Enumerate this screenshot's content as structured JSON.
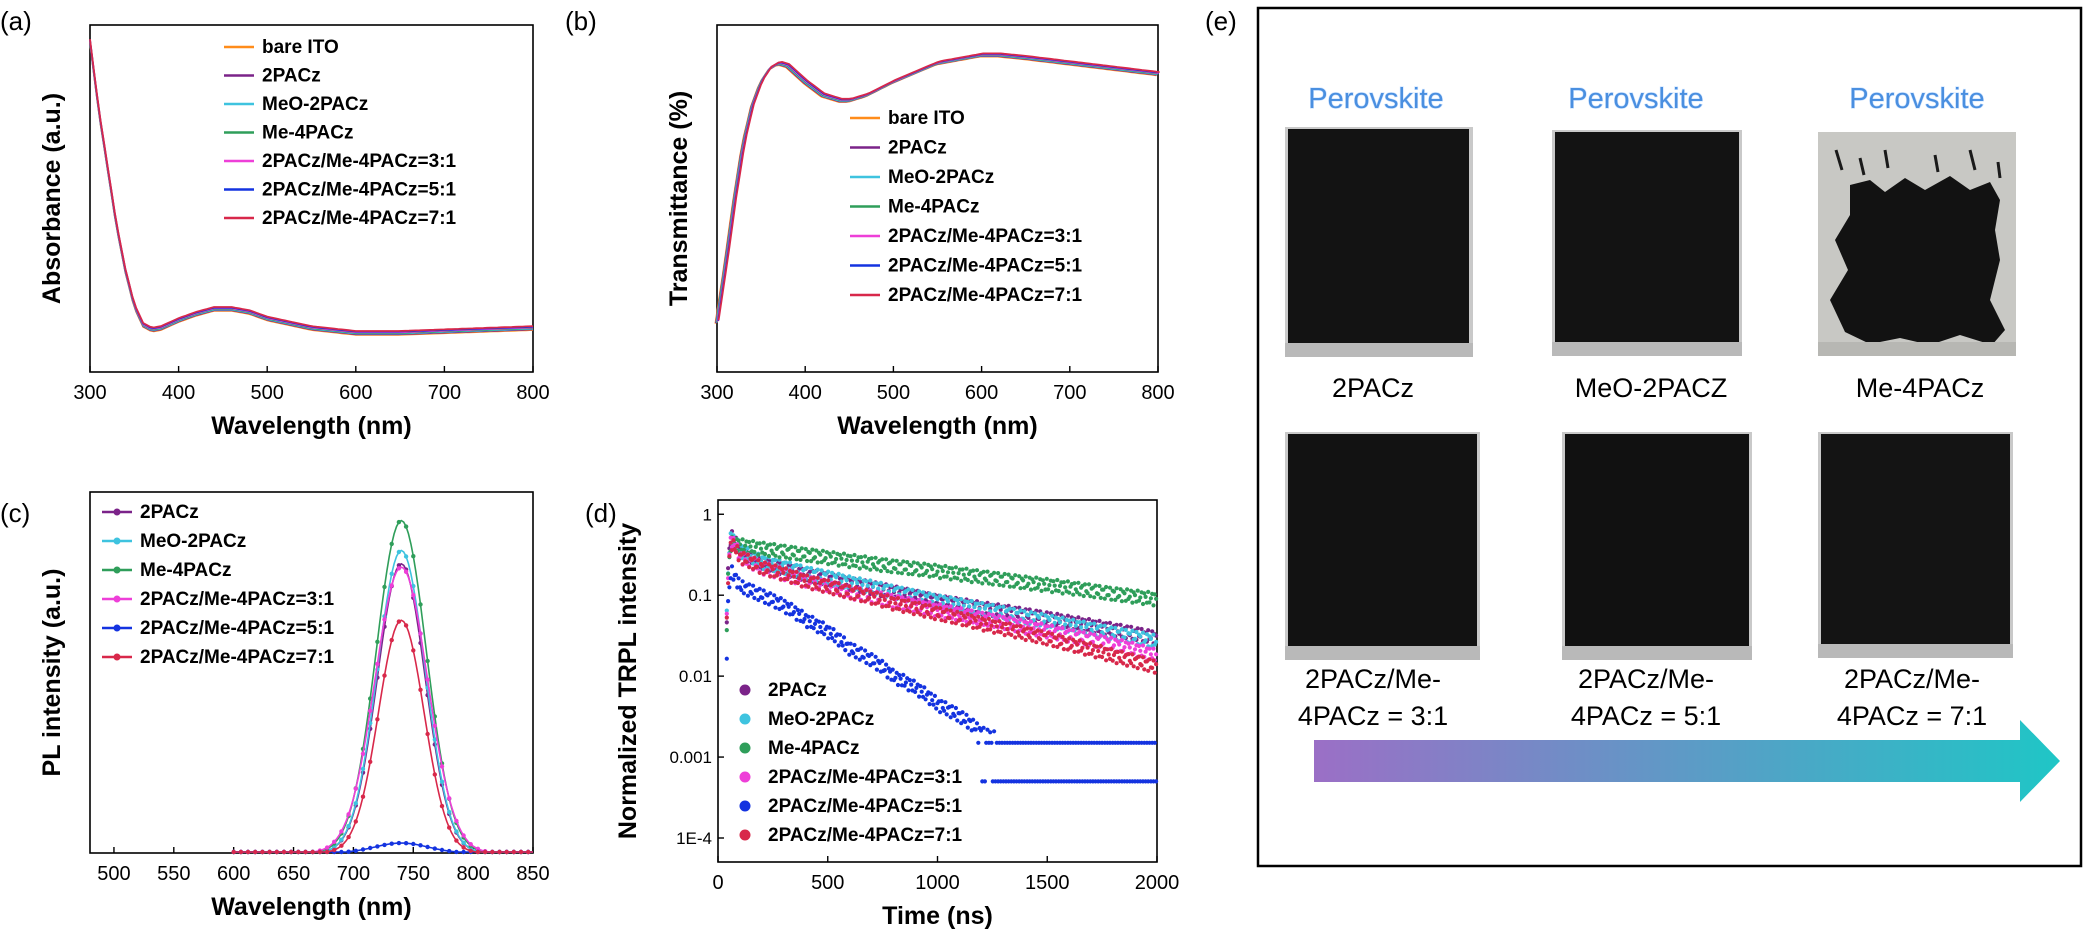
{
  "colors": {
    "bare_ito": "#ff8c1a",
    "2pacz": "#7b2389",
    "meo_2pacz": "#3ec3df",
    "me_4pacz": "#2f9e5a",
    "mix_3_1": "#ee3fd8",
    "mix_5_1": "#1433e0",
    "mix_7_1": "#d8284a",
    "arrow_start": "#9b6fc6",
    "arrow_end": "#1fc6c6",
    "perovskite_text": "#4a8fe0"
  },
  "panel_labels": {
    "a": "(a)",
    "b": "(b)",
    "c": "(c)",
    "d": "(d)",
    "e": "(e)"
  },
  "chart_data": [
    {
      "id": "a",
      "type": "line",
      "xlabel": "Wavelength (nm)",
      "ylabel": "Absorbance (a.u.)",
      "xlim": [
        300,
        800
      ],
      "xticks": [
        "300",
        "400",
        "500",
        "600",
        "700",
        "800"
      ],
      "yticks_labeled": false,
      "legend": [
        "bare ITO",
        "2PACz",
        "MeO-2PACz",
        "Me-4PACz",
        "2PACz/Me-4PACz=3:1",
        "2PACz/Me-4PACz=5:1",
        "2PACz/Me-4PACz=7:1"
      ],
      "legend_position": "top-right",
      "x": [
        300,
        310,
        320,
        330,
        340,
        350,
        360,
        370,
        380,
        400,
        420,
        440,
        460,
        480,
        500,
        550,
        600,
        650,
        700,
        750,
        800
      ],
      "y": [
        1.0,
        0.78,
        0.6,
        0.42,
        0.28,
        0.17,
        0.11,
        0.095,
        0.1,
        0.125,
        0.145,
        0.16,
        0.16,
        0.15,
        0.13,
        0.1,
        0.085,
        0.085,
        0.09,
        0.095,
        0.1
      ],
      "ylim": [
        0,
        1.0
      ],
      "note_series": "all seven curves overlap"
    },
    {
      "id": "b",
      "type": "line",
      "xlabel": "Wavelength (nm)",
      "ylabel": "Transmittance (%)",
      "xlim": [
        300,
        800
      ],
      "xticks": [
        "300",
        "400",
        "500",
        "600",
        "700",
        "800"
      ],
      "yticks_labeled": false,
      "legend": [
        "bare ITO",
        "2PACz",
        "MeO-2PACz",
        "Me-4PACz",
        "2PACz/Me-4PACz=3:1",
        "2PACz/Me-4PACz=5:1",
        "2PACz/Me-4PACz=7:1"
      ],
      "legend_position": "center-right",
      "x": [
        300,
        310,
        320,
        330,
        340,
        350,
        360,
        370,
        380,
        400,
        420,
        440,
        450,
        470,
        500,
        550,
        600,
        620,
        650,
        700,
        750,
        800
      ],
      "y": [
        0.0,
        0.22,
        0.46,
        0.67,
        0.81,
        0.9,
        0.95,
        0.97,
        0.96,
        0.9,
        0.85,
        0.83,
        0.83,
        0.85,
        0.9,
        0.97,
        1.0,
        1.0,
        0.99,
        0.97,
        0.95,
        0.93
      ],
      "ylim": [
        0,
        1.0
      ]
    },
    {
      "id": "c",
      "type": "line",
      "xlabel": "Wavelength (nm)",
      "ylabel": "PL intensity (a.u.)",
      "xlim": [
        480,
        850
      ],
      "xticks": [
        "500",
        "550",
        "600",
        "650",
        "700",
        "750",
        "800",
        "850"
      ],
      "yticks_labeled": false,
      "legend_position": "top-left",
      "peak_x": 740,
      "series": [
        {
          "name": "2PACz",
          "peak": 0.87,
          "width": 20
        },
        {
          "name": "MeO-2PACz",
          "peak": 0.91,
          "width": 20
        },
        {
          "name": "Me-4PACz",
          "peak": 1.0,
          "width": 21
        },
        {
          "name": "2PACz/Me-4PACz=3:1",
          "peak": 0.86,
          "width": 22
        },
        {
          "name": "2PACz/Me-4PACz=5:1",
          "peak": 0.03,
          "width": 22
        },
        {
          "name": "2PACz/Me-4PACz=7:1",
          "peak": 0.7,
          "width": 19
        }
      ],
      "ylim": [
        0,
        1.05
      ]
    },
    {
      "id": "d",
      "type": "scatter",
      "xlabel": "Time (ns)",
      "ylabel": "Normalized TRPL intensity",
      "xlim": [
        0,
        2000
      ],
      "ylim": [
        0.0001,
        1.5
      ],
      "yscale": "log",
      "xticks": [
        "0",
        "500",
        "1000",
        "1500",
        "2000"
      ],
      "yticks": [
        {
          "value": 1,
          "label": "1"
        },
        {
          "value": 0.1,
          "label": "0.1"
        },
        {
          "value": 0.01,
          "label": "0.01"
        },
        {
          "value": 0.001,
          "label": "0.001"
        },
        {
          "value": 0.0001,
          "label": "1E-4"
        }
      ],
      "legend_position": "bottom-left",
      "series": [
        {
          "name": "2PACz",
          "x": [
            60,
            100,
            200,
            400,
            600,
            800,
            1000,
            1200,
            1400,
            1600,
            1800,
            2000
          ],
          "y": [
            0.55,
            0.35,
            0.25,
            0.18,
            0.14,
            0.11,
            0.085,
            0.07,
            0.058,
            0.047,
            0.038,
            0.03
          ]
        },
        {
          "name": "MeO-2PACz",
          "x": [
            60,
            100,
            200,
            400,
            600,
            800,
            1000,
            1200,
            1400,
            1600,
            1800,
            2000
          ],
          "y": [
            0.55,
            0.36,
            0.26,
            0.19,
            0.145,
            0.11,
            0.085,
            0.068,
            0.054,
            0.043,
            0.034,
            0.027
          ]
        },
        {
          "name": "Me-4PACz",
          "x": [
            60,
            100,
            200,
            400,
            600,
            800,
            1000,
            1200,
            1400,
            1600,
            1800,
            2000
          ],
          "y": [
            0.45,
            0.42,
            0.38,
            0.32,
            0.27,
            0.23,
            0.2,
            0.17,
            0.145,
            0.125,
            0.105,
            0.09
          ]
        },
        {
          "name": "2PACz/Me-4PACz=3:1",
          "x": [
            60,
            100,
            200,
            400,
            600,
            800,
            1000,
            1200,
            1400,
            1600,
            1800,
            2000
          ],
          "y": [
            0.5,
            0.3,
            0.22,
            0.15,
            0.11,
            0.085,
            0.066,
            0.052,
            0.041,
            0.032,
            0.025,
            0.018
          ]
        },
        {
          "name": "2PACz/Me-4PACz=5:1",
          "x": [
            60,
            100,
            200,
            400,
            600,
            800,
            1000,
            1200,
            1400,
            1600,
            1800,
            2000
          ],
          "y": [
            0.2,
            0.13,
            0.1,
            0.05,
            0.022,
            0.01,
            0.0045,
            0.002,
            0.0012,
            0.0008,
            0.0005,
            0.0005
          ]
        },
        {
          "name": "2PACz/Me-4PACz=7:1",
          "x": [
            60,
            100,
            200,
            400,
            600,
            800,
            1000,
            1200,
            1400,
            1600,
            1800,
            2000
          ],
          "y": [
            0.45,
            0.3,
            0.22,
            0.15,
            0.11,
            0.08,
            0.06,
            0.045,
            0.034,
            0.025,
            0.018,
            0.013
          ]
        }
      ]
    }
  ],
  "panel_e": {
    "perovskite_labels": [
      "Perovskite",
      "Perovskite",
      "Perovskite"
    ],
    "row1_labels": [
      "2PACz",
      "MeO-2PACZ",
      "Me-4PACz"
    ],
    "row2_labels": [
      [
        "2PACz/Me-",
        "4PACz = 3:1"
      ],
      [
        "2PACz/Me-",
        "4PACz = 5:1"
      ],
      [
        "2PACz/Me-",
        "4PACz = 7:1"
      ]
    ],
    "row1_coverage": [
      "full",
      "full",
      "partial-dewetting"
    ],
    "row2_coverage": [
      "full",
      "full",
      "full"
    ]
  }
}
